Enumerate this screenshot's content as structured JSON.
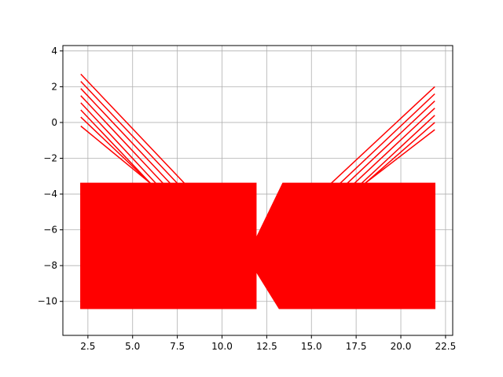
{
  "chart_data": {
    "type": "line",
    "title": "",
    "xlabel": "",
    "ylabel": "",
    "xlim": [
      1.1,
      22.9
    ],
    "ylim": [
      -11.9,
      4.3
    ],
    "grid": true,
    "line_color": "#ff0000",
    "x_ticks": [
      {
        "value": 2.5,
        "label": "2.5"
      },
      {
        "value": 5.0,
        "label": "5.0"
      },
      {
        "value": 7.5,
        "label": "7.5"
      },
      {
        "value": 10.0,
        "label": "10.0"
      },
      {
        "value": 12.5,
        "label": "12.5"
      },
      {
        "value": 15.0,
        "label": "15.0"
      },
      {
        "value": 17.5,
        "label": "17.5"
      },
      {
        "value": 20.0,
        "label": "20.0"
      },
      {
        "value": 22.5,
        "label": "22.5"
      }
    ],
    "y_ticks": [
      {
        "value": 4,
        "label": "4"
      },
      {
        "value": 2,
        "label": "2"
      },
      {
        "value": 0,
        "label": "0"
      },
      {
        "value": -2,
        "label": "−2"
      },
      {
        "value": -4,
        "label": "−4"
      },
      {
        "value": -6,
        "label": "−6"
      },
      {
        "value": -8,
        "label": "−8"
      },
      {
        "value": -10,
        "label": "−10"
      }
    ],
    "series": [
      {
        "x": [
          2.1,
          11.9,
          11.9,
          2.1,
          2.1
        ],
        "y": [
          -3.4,
          -3.4,
          -10.4,
          -10.4,
          -3.4
        ]
      },
      {
        "x": [
          13.4,
          21.9,
          21.9,
          13.2,
          11.9,
          11.9,
          13.4
        ],
        "y": [
          -3.4,
          -3.4,
          -10.4,
          -10.4,
          -8.3,
          -6.5,
          -3.4
        ]
      },
      {
        "x": [
          2.1,
          7.9
        ],
        "y": [
          2.7,
          -3.4
        ]
      },
      {
        "x": [
          2.1,
          7.5
        ],
        "y": [
          2.3,
          -3.4
        ]
      },
      {
        "x": [
          2.1,
          7.1
        ],
        "y": [
          1.9,
          -3.4
        ]
      },
      {
        "x": [
          2.1,
          6.7
        ],
        "y": [
          1.5,
          -3.4
        ]
      },
      {
        "x": [
          2.1,
          6.3
        ],
        "y": [
          1.1,
          -3.4
        ]
      },
      {
        "x": [
          2.1,
          6.0
        ],
        "y": [
          0.7,
          -3.4
        ]
      },
      {
        "x": [
          2.1,
          6.0
        ],
        "y": [
          0.3,
          -3.4
        ]
      },
      {
        "x": [
          2.1,
          6.0
        ],
        "y": [
          -0.2,
          -3.4
        ]
      },
      {
        "x": [
          21.9,
          16.1
        ],
        "y": [
          2.0,
          -3.4
        ]
      },
      {
        "x": [
          21.9,
          16.6
        ],
        "y": [
          1.6,
          -3.4
        ]
      },
      {
        "x": [
          21.9,
          17.0
        ],
        "y": [
          1.2,
          -3.4
        ]
      },
      {
        "x": [
          21.9,
          17.4
        ],
        "y": [
          0.8,
          -3.4
        ]
      },
      {
        "x": [
          21.9,
          17.8
        ],
        "y": [
          0.4,
          -3.4
        ]
      },
      {
        "x": [
          21.9,
          18.0
        ],
        "y": [
          0.0,
          -3.4
        ]
      },
      {
        "x": [
          21.9,
          18.0
        ],
        "y": [
          -0.4,
          -3.4
        ]
      }
    ]
  }
}
